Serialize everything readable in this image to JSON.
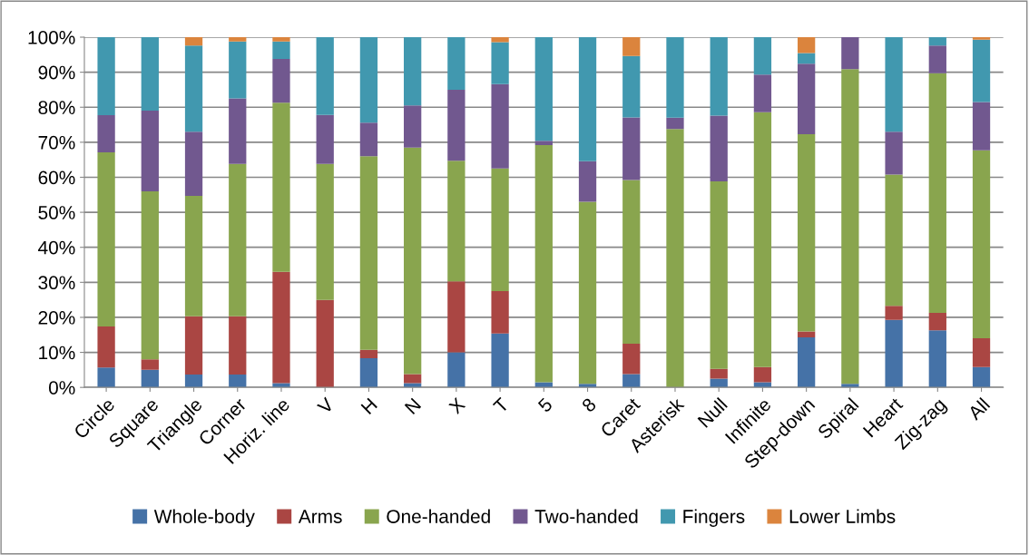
{
  "chart_data": {
    "type": "bar",
    "stacked": true,
    "categories": [
      "Circle",
      "Square",
      "Triangle",
      "Corner",
      "Horiz. line",
      "V",
      "H",
      "N",
      "X",
      "T",
      "5",
      "8",
      "Caret",
      "Asterisk",
      "Null",
      "Infinite",
      "Step-down",
      "Spiral",
      "Heart",
      "Zig-zag",
      "All"
    ],
    "series": [
      {
        "name": "Whole-body",
        "color": "#4572a7",
        "values": [
          5.7,
          5,
          3.7,
          3.7,
          1.2,
          0,
          8.3,
          1.2,
          10,
          15.4,
          1.5,
          1,
          3.8,
          0,
          2.5,
          1.5,
          14.3,
          1,
          19.3,
          16.3,
          5.8
        ]
      },
      {
        "name": "Arms",
        "color": "#aa4643",
        "values": [
          11.7,
          3,
          16.6,
          16.6,
          31.8,
          25,
          2.4,
          2.6,
          20.3,
          12.1,
          0,
          0,
          8.7,
          0,
          2.8,
          4.3,
          1.7,
          0,
          4,
          5,
          8.2
        ]
      },
      {
        "name": "One-handed",
        "color": "#89a54e",
        "values": [
          49.7,
          48,
          34.4,
          43.5,
          48.3,
          38.8,
          55.3,
          64.7,
          34.4,
          35,
          67.7,
          52,
          46.7,
          73.8,
          53.5,
          72.8,
          56.3,
          89.9,
          37.5,
          68.4,
          53.7
        ]
      },
      {
        "name": "Two-handed",
        "color": "#71588f",
        "values": [
          10.6,
          23,
          18.3,
          18.7,
          12.5,
          14,
          9.6,
          12,
          20.3,
          24.1,
          1.2,
          11.6,
          17.9,
          3.2,
          18.8,
          10.7,
          20.1,
          9.1,
          12.2,
          7.9,
          13.8
        ]
      },
      {
        "name": "Fingers",
        "color": "#4198af",
        "values": [
          22.3,
          21,
          24.6,
          16.3,
          5,
          22.2,
          24.4,
          19.5,
          15,
          12,
          29.6,
          35.4,
          17.5,
          23,
          22.4,
          10.7,
          3.1,
          0,
          27,
          2.4,
          17.8
        ]
      },
      {
        "name": "Lower Limbs",
        "color": "#db843d",
        "values": [
          0,
          0,
          2.4,
          1.2,
          1.2,
          0,
          0,
          0,
          0,
          1.4,
          0,
          0,
          5.4,
          0,
          0,
          0,
          4.5,
          0,
          0,
          0,
          0.7
        ]
      }
    ],
    "ylim": [
      0,
      100
    ],
    "yticks": [
      {
        "value": 0,
        "label": "0%"
      },
      {
        "value": 10,
        "label": "10%"
      },
      {
        "value": 20,
        "label": "20%"
      },
      {
        "value": 30,
        "label": "30%"
      },
      {
        "value": 40,
        "label": "40%"
      },
      {
        "value": 50,
        "label": "50%"
      },
      {
        "value": 60,
        "label": "60%"
      },
      {
        "value": 70,
        "label": "70%"
      },
      {
        "value": 80,
        "label": "80%"
      },
      {
        "value": 90,
        "label": "90%"
      },
      {
        "value": 100,
        "label": "100%"
      }
    ],
    "grid": "y",
    "legend": "bottom"
  }
}
